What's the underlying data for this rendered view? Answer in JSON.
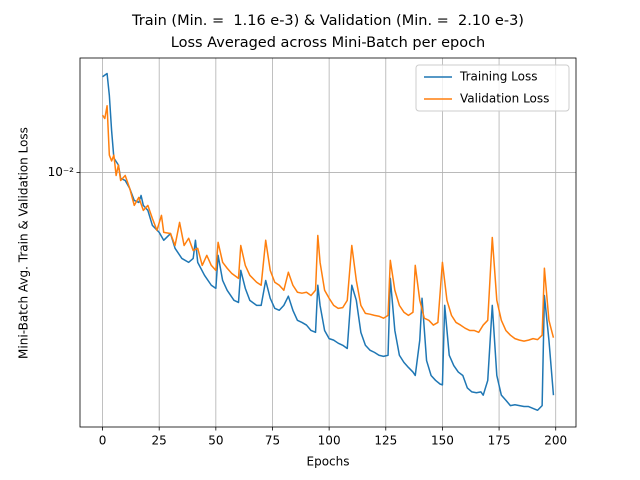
{
  "chart_data": {
    "type": "line",
    "title": [
      "Train (Min. =  1.16 e-3) & Validation (Min. =  2.10 e-3)",
      "Loss Averaged across Mini-Batch per epoch"
    ],
    "x_label": "Epochs",
    "y_label": "Mini-Batch Avg. Train & Validation Loss",
    "xlim": [
      -9.95,
      208.95
    ],
    "xticks": [
      0,
      25,
      50,
      75,
      100,
      125,
      150,
      175,
      200
    ],
    "ylim": [
      0.000997,
      0.0282
    ],
    "yticks": [
      {
        "value": 0.01,
        "label": "10⁻²"
      }
    ],
    "log_y": true,
    "grid": true,
    "legend": "upper right",
    "series": [
      {
        "name": "Training Loss",
        "color": "#1f77b4",
        "x": [
          0,
          2,
          3,
          4,
          5,
          7,
          8,
          10,
          12,
          14,
          16,
          17,
          18,
          20,
          22,
          25,
          27,
          30,
          32,
          35,
          38,
          40,
          41,
          42,
          45,
          48,
          50,
          51,
          53,
          55,
          58,
          60,
          61,
          63,
          65,
          68,
          70,
          72,
          74,
          76,
          78,
          80,
          82,
          84,
          86,
          88,
          90,
          92,
          94,
          95,
          96,
          98,
          100,
          102,
          104,
          106,
          108,
          110,
          112,
          114,
          116,
          118,
          120,
          122,
          124,
          126,
          127,
          129,
          131,
          133,
          135,
          137,
          138,
          140,
          141,
          143,
          145,
          147,
          149,
          150,
          151,
          153,
          155,
          157,
          159,
          161,
          163,
          165,
          167,
          168,
          170,
          172,
          174,
          176,
          178,
          180,
          182,
          184,
          186,
          188,
          190,
          192,
          194,
          195,
          197,
          199
        ],
        "values": [
          0.0238,
          0.0245,
          0.0201,
          0.0146,
          0.0114,
          0.0107,
          0.00947,
          0.0093,
          0.00865,
          0.00776,
          0.00762,
          0.00812,
          0.00742,
          0.00709,
          0.00619,
          0.00581,
          0.00541,
          0.00575,
          0.00503,
          0.00459,
          0.00443,
          0.00459,
          0.00541,
          0.00443,
          0.00394,
          0.0036,
          0.0035,
          0.00472,
          0.00376,
          0.00344,
          0.00314,
          0.00308,
          0.00412,
          0.0035,
          0.00314,
          0.003,
          0.003,
          0.00376,
          0.0032,
          0.00292,
          0.00287,
          0.003,
          0.00326,
          0.00287,
          0.00262,
          0.00257,
          0.00251,
          0.00239,
          0.00235,
          0.0036,
          0.003,
          0.00239,
          0.00222,
          0.00219,
          0.00213,
          0.00209,
          0.00203,
          0.0036,
          0.00314,
          0.00235,
          0.00209,
          0.002,
          0.00196,
          0.00191,
          0.00189,
          0.00191,
          0.00383,
          0.00239,
          0.00191,
          0.00179,
          0.00171,
          0.00164,
          0.00159,
          0.00219,
          0.0032,
          0.00182,
          0.00159,
          0.00152,
          0.00147,
          0.00146,
          0.003,
          0.00191,
          0.00174,
          0.00164,
          0.00159,
          0.00142,
          0.00137,
          0.00136,
          0.00137,
          0.00133,
          0.00152,
          0.003,
          0.00159,
          0.00133,
          0.00127,
          0.00121,
          0.00122,
          0.00121,
          0.0012,
          0.0012,
          0.00118,
          0.00116,
          0.00121,
          0.00328,
          0.00219,
          0.00133
        ]
      },
      {
        "name": "Validation Loss",
        "color": "#ff7f0e",
        "x": [
          0,
          1,
          2,
          3,
          4,
          5,
          6,
          7,
          8,
          10,
          12,
          14,
          16,
          18,
          20,
          22,
          24,
          26,
          27,
          30,
          32,
          34,
          36,
          38,
          40,
          42,
          44,
          46,
          48,
          50,
          51,
          53,
          55,
          57,
          60,
          61,
          63,
          65,
          68,
          70,
          72,
          74,
          76,
          78,
          80,
          82,
          84,
          86,
          88,
          90,
          92,
          94,
          95,
          96,
          98,
          100,
          102,
          104,
          106,
          108,
          110,
          112,
          114,
          116,
          118,
          120,
          122,
          124,
          126,
          127,
          129,
          131,
          133,
          135,
          137,
          138,
          140,
          142,
          144,
          146,
          148,
          150,
          152,
          154,
          156,
          158,
          160,
          162,
          164,
          166,
          168,
          170,
          172,
          174,
          176,
          178,
          180,
          182,
          184,
          186,
          188,
          190,
          192,
          194,
          195,
          197,
          199
        ],
        "values": [
          0.0168,
          0.0163,
          0.0183,
          0.0117,
          0.0111,
          0.0117,
          0.00973,
          0.0107,
          0.0093,
          0.00973,
          0.00865,
          0.00742,
          0.00798,
          0.00709,
          0.00742,
          0.00659,
          0.00592,
          0.00678,
          0.00581,
          0.00575,
          0.00516,
          0.00636,
          0.00516,
          0.00551,
          0.00493,
          0.00503,
          0.00431,
          0.00472,
          0.00431,
          0.00412,
          0.00531,
          0.00443,
          0.0042,
          0.00401,
          0.00383,
          0.00516,
          0.00431,
          0.00394,
          0.0037,
          0.0036,
          0.00541,
          0.00412,
          0.0037,
          0.0036,
          0.00344,
          0.00405,
          0.0036,
          0.00338,
          0.00335,
          0.00338,
          0.00328,
          0.00344,
          0.00565,
          0.00443,
          0.00344,
          0.0032,
          0.003,
          0.00292,
          0.00294,
          0.00314,
          0.00516,
          0.00376,
          0.003,
          0.00279,
          0.00277,
          0.00274,
          0.00272,
          0.00267,
          0.00274,
          0.00451,
          0.00344,
          0.003,
          0.00282,
          0.00274,
          0.00282,
          0.00431,
          0.00314,
          0.00267,
          0.00262,
          0.00251,
          0.00257,
          0.00443,
          0.00314,
          0.00274,
          0.00257,
          0.00251,
          0.00244,
          0.00239,
          0.00239,
          0.00235,
          0.00251,
          0.00262,
          0.00555,
          0.00314,
          0.00262,
          0.00239,
          0.00229,
          0.00222,
          0.00219,
          0.00217,
          0.00219,
          0.00222,
          0.0022,
          0.00229,
          0.0042,
          0.00262,
          0.00224
        ]
      }
    ]
  }
}
